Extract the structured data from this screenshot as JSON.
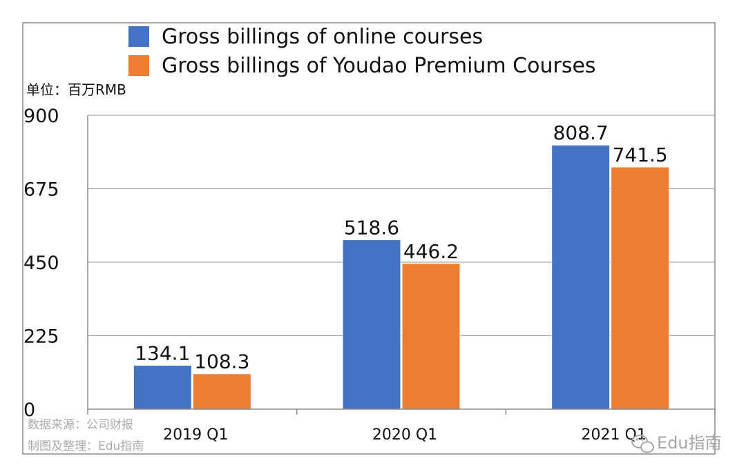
{
  "chart_data": {
    "type": "bar",
    "categories": [
      "2019 Q1",
      "2020 Q1",
      "2021 Q1"
    ],
    "series": [
      {
        "name": "Gross billings of online courses",
        "values": [
          134.1,
          518.6,
          808.7
        ],
        "color": "#4472c4"
      },
      {
        "name": "Gross billings of Youdao Premium Courses",
        "values": [
          108.3,
          446.2,
          741.5
        ],
        "color": "#ed7d31"
      }
    ],
    "value_labels": [
      [
        "134.1",
        "518.6",
        "808.7"
      ],
      [
        "108.3",
        "446.2",
        "741.5"
      ]
    ],
    "unit_label": "单位：百万RMB",
    "yticks": [
      0,
      225,
      450,
      675,
      900
    ],
    "ylim": [
      0,
      900
    ],
    "grid": true,
    "legend_position": "top"
  },
  "source_lines": [
    "数据来源：公司财报",
    "制图及整理：Edu指南"
  ],
  "watermark": {
    "text": "Edu指南",
    "icon": "wechat-icon"
  }
}
